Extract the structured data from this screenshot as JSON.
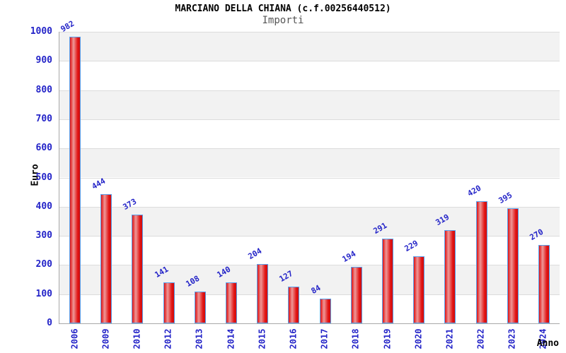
{
  "chart_data": {
    "type": "bar",
    "title": "MARCIANO DELLA CHIANA (c.f.00256440512)",
    "subtitle": "Importi",
    "xlabel": "Anno",
    "ylabel": "Euro",
    "categories": [
      "2006",
      "2009",
      "2010",
      "2012",
      "2013",
      "2014",
      "2015",
      "2016",
      "2017",
      "2018",
      "2019",
      "2020",
      "2021",
      "2022",
      "2023",
      "2024"
    ],
    "values": [
      982,
      444,
      373,
      141,
      108,
      140,
      204,
      127,
      84,
      194,
      291,
      229,
      319,
      420,
      395,
      270
    ],
    "ylim": [
      0,
      1000
    ],
    "ytick_step": 100,
    "yticks": [
      "0",
      "100",
      "200",
      "300",
      "400",
      "500",
      "600",
      "700",
      "800",
      "900",
      "1000"
    ],
    "grid": true,
    "legend": "none",
    "colors": {
      "bar_fill": "#e11212",
      "bar_fill_highlight": "#ee9898",
      "bar_border": "#58a0ec",
      "axis_text": "#2424c8",
      "band_gray": "#f2f2f2",
      "band_white": "#ffffff",
      "gridline": "#dcdcdc",
      "axis_line": "#a8a8a8",
      "title_color": "#000000",
      "subtitle_color": "#555555"
    }
  }
}
